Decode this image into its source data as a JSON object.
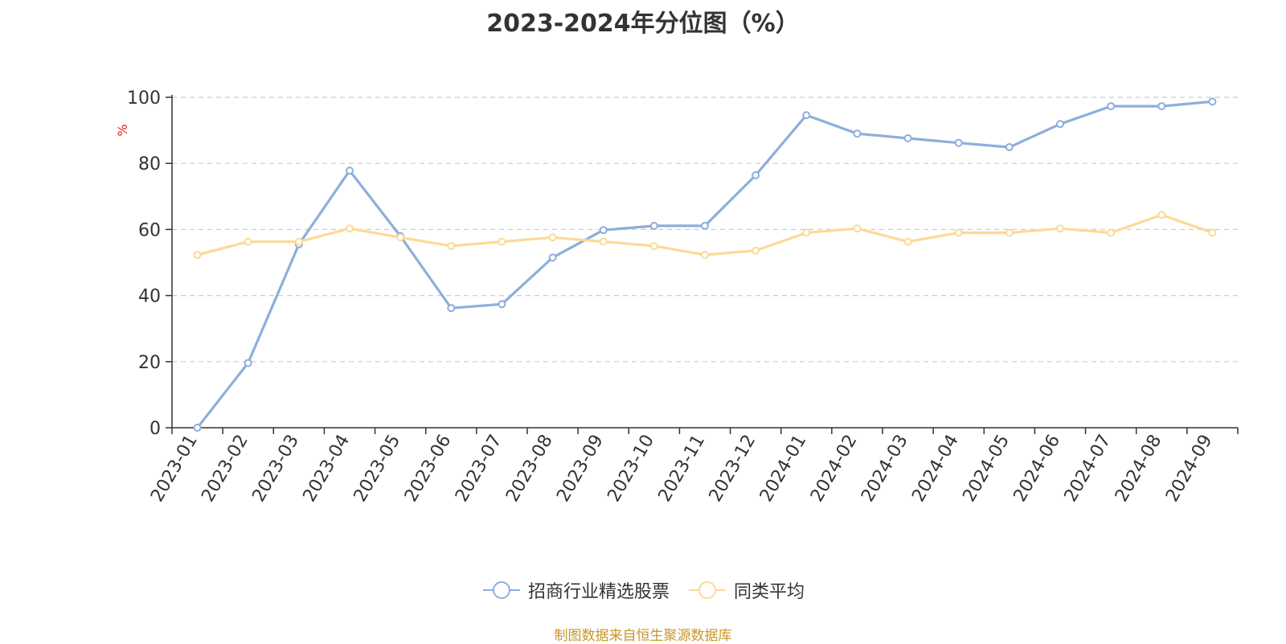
{
  "chart_data": {
    "type": "line",
    "title": "2023-2024年分位图（%）",
    "ylabel": "%",
    "xlabel": "",
    "ylim": [
      0,
      100
    ],
    "yticks": [
      0,
      20,
      40,
      60,
      80,
      100
    ],
    "grid": true,
    "legend_position": "bottom-center",
    "categories": [
      "2023-01",
      "2023-02",
      "2023-03",
      "2023-04",
      "2023-05",
      "2023-06",
      "2023-07",
      "2023-08",
      "2023-09",
      "2023-10",
      "2023-11",
      "2023-12",
      "2024-01",
      "2024-02",
      "2024-03",
      "2024-04",
      "2024-05",
      "2024-06",
      "2024-07",
      "2024-08",
      "2024-09"
    ],
    "series": [
      {
        "name": "招商行业精选股票",
        "color": "#8eaedc",
        "values": [
          0,
          19.6,
          55.5,
          77.8,
          58.0,
          36.2,
          37.4,
          51.5,
          59.8,
          61.1,
          61.1,
          76.4,
          94.6,
          89.0,
          87.6,
          86.2,
          84.9,
          91.9,
          97.3,
          97.3,
          98.7
        ]
      },
      {
        "name": "同类平均",
        "color": "#fdd997",
        "values": [
          52.3,
          56.3,
          56.3,
          60.3,
          57.6,
          55.0,
          56.3,
          57.6,
          56.3,
          55.0,
          52.3,
          53.6,
          59.0,
          60.3,
          56.3,
          59.0,
          59.0,
          60.3,
          59.0,
          64.4,
          59.0
        ]
      }
    ]
  },
  "source_note": "制图数据来自恒生聚源数据库"
}
